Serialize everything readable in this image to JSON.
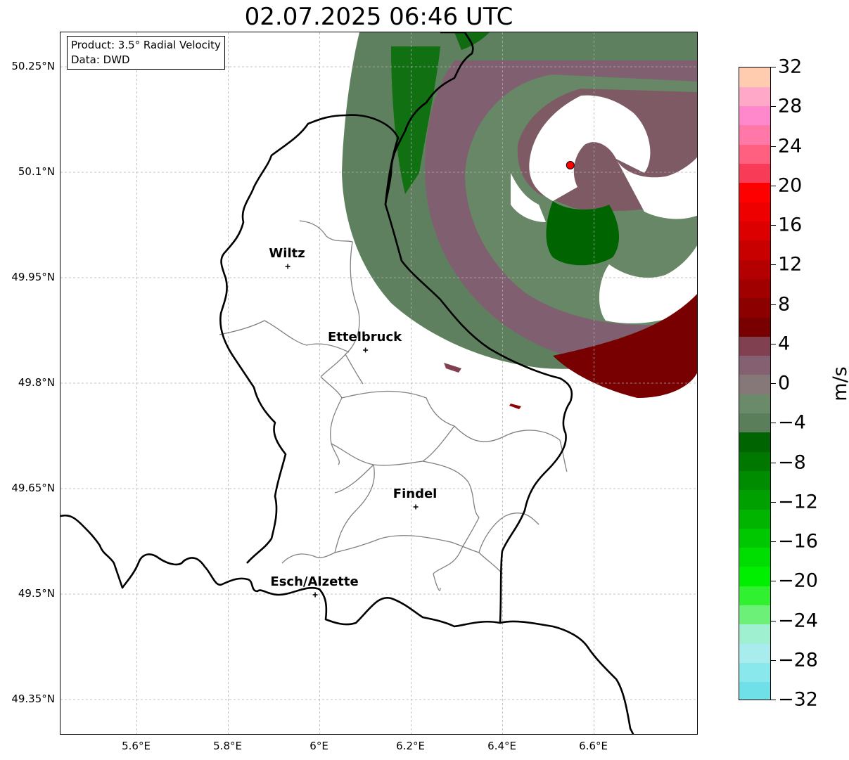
{
  "title": "02.07.2025 06:46 UTC",
  "info_box": {
    "product": "Product: 3.5° Radial Velocity",
    "data_source": "Data: DWD"
  },
  "map": {
    "lat_ticks": [
      {
        "lat": 50.25,
        "label": "50.25°N"
      },
      {
        "lat": 50.1,
        "label": "50.1°N"
      },
      {
        "lat": 49.95,
        "label": "49.95°N"
      },
      {
        "lat": 49.8,
        "label": "49.8°N"
      },
      {
        "lat": 49.65,
        "label": "49.65°N"
      },
      {
        "lat": 49.5,
        "label": "49.5°N"
      },
      {
        "lat": 49.35,
        "label": "49.35°N"
      }
    ],
    "lon_ticks": [
      {
        "lon": 5.6,
        "label": "5.6°E"
      },
      {
        "lon": 5.8,
        "label": "5.8°E"
      },
      {
        "lon": 6.0,
        "label": "6°E"
      },
      {
        "lon": 6.2,
        "label": "6.2°E"
      },
      {
        "lon": 6.4,
        "label": "6.4°E"
      },
      {
        "lon": 6.6,
        "label": "6.6°E"
      }
    ],
    "cities": [
      {
        "name": "Wiltz",
        "lon": 5.93,
        "lat": 49.966
      },
      {
        "name": "Ettelbruck",
        "lon": 6.1,
        "lat": 49.847
      },
      {
        "name": "Findel",
        "lon": 6.21,
        "lat": 49.624
      },
      {
        "name": "Esch/Alzette",
        "lon": 5.99,
        "lat": 49.499
      }
    ],
    "radar_site": {
      "lon": 6.548,
      "lat": 50.11,
      "color": "#ff0000"
    },
    "border_color": "#000000",
    "canton_color": "#808080"
  },
  "colorbar": {
    "unit": "m/s",
    "ticks": [
      {
        "value": 32,
        "label": "32"
      },
      {
        "value": 28,
        "label": "28"
      },
      {
        "value": 24,
        "label": "24"
      },
      {
        "value": 20,
        "label": "20"
      },
      {
        "value": 16,
        "label": "16"
      },
      {
        "value": 12,
        "label": "12"
      },
      {
        "value": 8,
        "label": "8"
      },
      {
        "value": 4,
        "label": "4"
      },
      {
        "value": 0,
        "label": "0"
      },
      {
        "value": -4,
        "label": "−4"
      },
      {
        "value": -8,
        "label": "−8"
      },
      {
        "value": -12,
        "label": "−12"
      },
      {
        "value": -16,
        "label": "−16"
      },
      {
        "value": -20,
        "label": "−20"
      },
      {
        "value": -24,
        "label": "−24"
      },
      {
        "value": -28,
        "label": "−28"
      },
      {
        "value": -32,
        "label": "−32"
      }
    ],
    "min": -32,
    "max": 32,
    "colors": [
      "#70e0e8",
      "#88e8ec",
      "#a8ecee",
      "#9ef0d0",
      "#6cf078",
      "#30f030",
      "#00ee00",
      "#00dd00",
      "#00c800",
      "#00b400",
      "#00a000",
      "#008c00",
      "#007800",
      "#006400",
      "#5a7e5a",
      "#6a8a6a",
      "#867878",
      "#846070",
      "#804050",
      "#780000",
      "#8c0000",
      "#a00000",
      "#b40000",
      "#c80000",
      "#dc0000",
      "#ee0000",
      "#ff0000",
      "#f83c58",
      "#ff6080",
      "#ff78a8",
      "#ff88cc",
      "#ffa8c8",
      "#ffccb0"
    ]
  }
}
